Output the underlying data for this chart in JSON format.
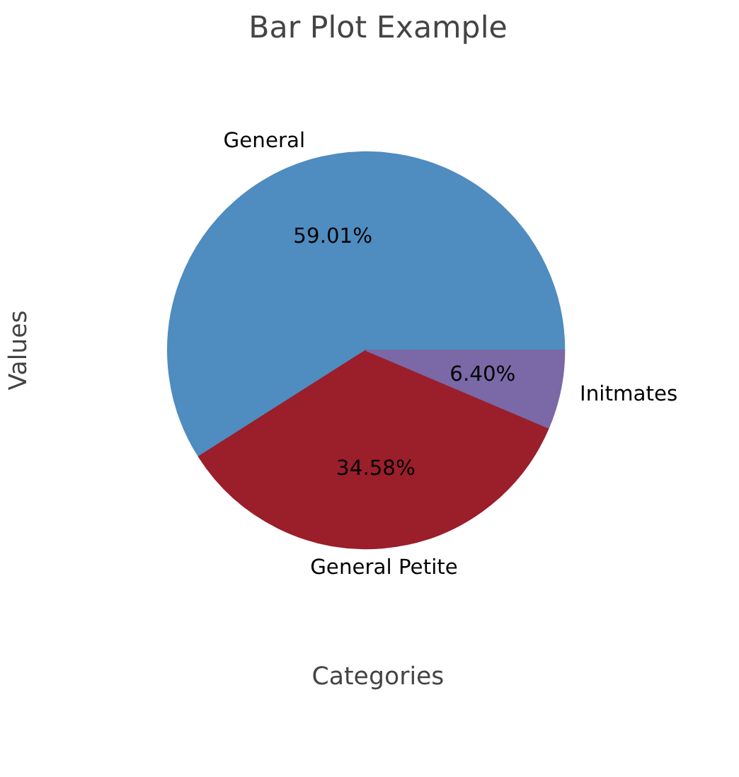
{
  "chart_data": {
    "type": "pie",
    "title": "Bar Plot Example",
    "xlabel": "Categories",
    "ylabel": "Values",
    "categories": [
      "General",
      "General Petite",
      "Initmates"
    ],
    "values": [
      59.01,
      34.58,
      6.4
    ],
    "colors": [
      "#4f8cc0",
      "#9a1f2b",
      "#7b68a6"
    ],
    "value_labels": [
      "59.01%",
      "34.58%",
      "6.40%"
    ]
  }
}
